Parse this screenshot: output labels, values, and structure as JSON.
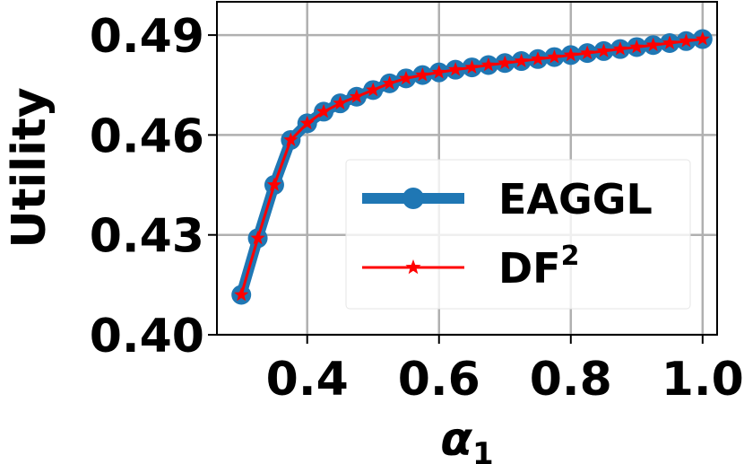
{
  "chart_data": {
    "type": "line",
    "xlabel": "α",
    "xlabel_sub": "1",
    "ylabel": "Utility",
    "xlim": [
      0.263,
      1.022
    ],
    "ylim": [
      0.4,
      0.5
    ],
    "xticks": [
      0.4,
      0.6,
      0.8,
      1.0
    ],
    "xtick_labels": [
      "0.4",
      "0.6",
      "0.8",
      "1.0"
    ],
    "yticks": [
      0.4,
      0.43,
      0.46,
      0.49
    ],
    "ytick_labels": [
      "0.40",
      "0.43",
      "0.46",
      "0.49"
    ],
    "grid": true,
    "legend_position": "center-right",
    "x": [
      0.3,
      0.325,
      0.35,
      0.375,
      0.4,
      0.425,
      0.45,
      0.475,
      0.5,
      0.525,
      0.55,
      0.575,
      0.6,
      0.625,
      0.65,
      0.675,
      0.7,
      0.725,
      0.75,
      0.775,
      0.8,
      0.825,
      0.85,
      0.875,
      0.9,
      0.925,
      0.95,
      0.975,
      1.0
    ],
    "series": [
      {
        "name": "EAGGL",
        "color": "#1f77b4",
        "marker": "circle",
        "values": [
          0.412,
          0.429,
          0.445,
          0.4585,
          0.4635,
          0.467,
          0.4695,
          0.4715,
          0.4735,
          0.4755,
          0.477,
          0.478,
          0.4788,
          0.4796,
          0.4803,
          0.481,
          0.4816,
          0.4822,
          0.4828,
          0.4834,
          0.484,
          0.4846,
          0.4852,
          0.4858,
          0.4864,
          0.487,
          0.4876,
          0.4882,
          0.4888
        ]
      },
      {
        "name": "DF",
        "name_sup": "2",
        "color": "#ff0000",
        "marker": "star",
        "values": [
          0.412,
          0.429,
          0.445,
          0.4585,
          0.4635,
          0.467,
          0.4695,
          0.4715,
          0.4735,
          0.4755,
          0.477,
          0.478,
          0.4788,
          0.4796,
          0.4803,
          0.481,
          0.4816,
          0.4822,
          0.4828,
          0.4834,
          0.484,
          0.4846,
          0.4852,
          0.4858,
          0.4864,
          0.487,
          0.4876,
          0.4882,
          0.4888
        ]
      }
    ]
  }
}
